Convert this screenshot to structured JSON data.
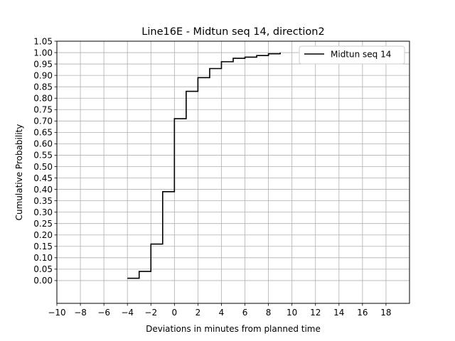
{
  "chart_data": {
    "type": "line",
    "step": "post",
    "title": "Line16E - Midtun seq 14, direction2",
    "xlabel": "Deviations in minutes from planned time",
    "ylabel": "Cumulative Probability",
    "xlim": [
      -10,
      20
    ],
    "ylim": [
      -0.1,
      1.05
    ],
    "xticks": [
      -10,
      -8,
      -6,
      -4,
      -2,
      0,
      2,
      4,
      6,
      8,
      10,
      12,
      14,
      16,
      18
    ],
    "xtick_labels": [
      "−10",
      "−8",
      "−6",
      "−4",
      "−2",
      "0",
      "2",
      "4",
      "6",
      "8",
      "10",
      "12",
      "14",
      "16",
      "18"
    ],
    "yticks": [
      0.0,
      0.05,
      0.1,
      0.15,
      0.2,
      0.25,
      0.3,
      0.35,
      0.4,
      0.45,
      0.5,
      0.55,
      0.6,
      0.65,
      0.7,
      0.75,
      0.8,
      0.85,
      0.9,
      0.95,
      1.0,
      1.05
    ],
    "ytick_labels": [
      "0.00",
      "0.05",
      "0.10",
      "0.15",
      "0.20",
      "0.25",
      "0.30",
      "0.35",
      "0.40",
      "0.45",
      "0.50",
      "0.55",
      "0.60",
      "0.65",
      "0.70",
      "0.75",
      "0.80",
      "0.85",
      "0.90",
      "0.95",
      "1.00",
      "1.05"
    ],
    "grid": true,
    "legend_position": "top-right",
    "series": [
      {
        "name": "Midtun seq 14",
        "color": "#000000",
        "x": [
          -4,
          -3,
          -2,
          -1,
          0,
          1,
          2,
          3,
          4,
          5,
          6,
          7,
          8,
          9
        ],
        "y": [
          0.01,
          0.04,
          0.16,
          0.39,
          0.71,
          0.83,
          0.89,
          0.93,
          0.96,
          0.975,
          0.98,
          0.987,
          0.995,
          1.0
        ]
      }
    ]
  }
}
